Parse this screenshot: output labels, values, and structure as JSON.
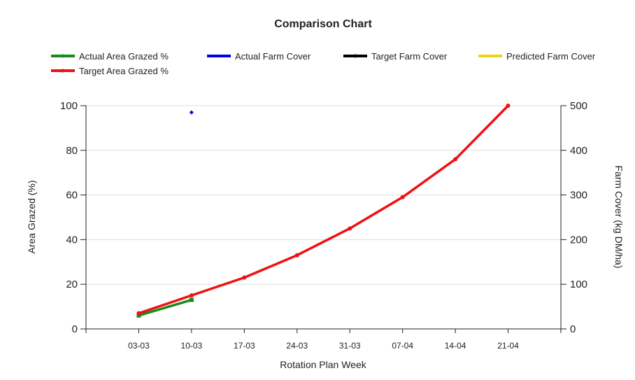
{
  "chart_data": {
    "type": "line",
    "title": "Comparison Chart",
    "xlabel": "Rotation Plan Week",
    "ylabel": "Area Grazed (%)",
    "y2label": "Farm Cover (kg DM/ha)",
    "categories": [
      "03-03",
      "10-03",
      "17-03",
      "24-03",
      "31-03",
      "07-04",
      "14-04",
      "21-04"
    ],
    "ylim": [
      0,
      100
    ],
    "yticks": [
      0,
      20,
      40,
      60,
      80,
      100
    ],
    "y2lim": [
      0,
      500
    ],
    "y2ticks": [
      0,
      100,
      200,
      300,
      400,
      500
    ],
    "grid": true,
    "legend_position": "top",
    "series": [
      {
        "name": "Actual Area Grazed %",
        "axis": "left",
        "color": "#1a8a1a",
        "style": "line",
        "values": [
          6,
          13,
          null,
          null,
          null,
          null,
          null,
          null
        ]
      },
      {
        "name": "Actual Farm Cover",
        "axis": "right",
        "color": "#0000ee",
        "style": "point",
        "values": [
          null,
          485,
          null,
          null,
          null,
          null,
          null,
          null
        ]
      },
      {
        "name": "Target Farm Cover",
        "axis": "right",
        "color": "#000000",
        "style": "line",
        "values": [
          null,
          null,
          null,
          null,
          null,
          null,
          null,
          null
        ]
      },
      {
        "name": "Predicted Farm Cover",
        "axis": "right",
        "color": "#f2d21a",
        "style": "line",
        "values": [
          null,
          null,
          null,
          null,
          null,
          null,
          null,
          null
        ]
      },
      {
        "name": "Target Area Grazed %",
        "axis": "left",
        "color": "#ee1111",
        "style": "line",
        "values": [
          7,
          15,
          23,
          33,
          45,
          59,
          76,
          100
        ]
      }
    ]
  }
}
